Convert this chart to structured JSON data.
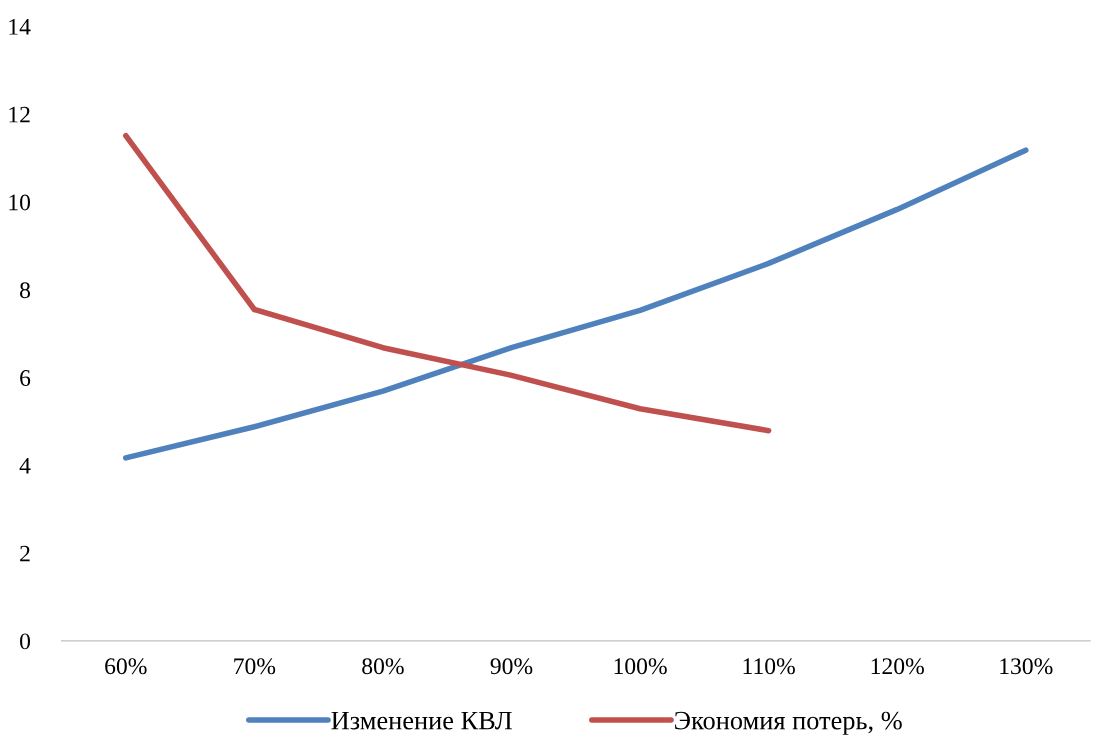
{
  "chart_data": {
    "type": "line",
    "categories": [
      "60%",
      "70%",
      "80%",
      "90%",
      "100%",
      "110%",
      "120%",
      "130%"
    ],
    "series": [
      {
        "name": "Изменение КВЛ",
        "color": "#4f81bd",
        "values": [
          4.17,
          4.88,
          5.69,
          6.68,
          7.53,
          8.6,
          9.83,
          11.18
        ]
      },
      {
        "name": "Экономия потерь, %",
        "color": "#c0504d",
        "values": [
          11.51,
          7.55,
          6.68,
          6.05,
          5.29,
          4.79,
          null,
          null
        ]
      }
    ],
    "ylim": [
      0,
      14
    ],
    "yticks": [
      0,
      2,
      4,
      6,
      8,
      10,
      12,
      14
    ],
    "grid": false,
    "legend": "bottom",
    "marker": "none",
    "line_style": "solid"
  }
}
